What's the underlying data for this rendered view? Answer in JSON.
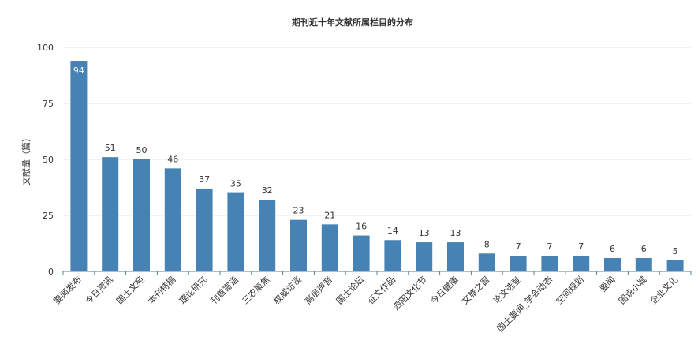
{
  "chart_data": {
    "type": "bar",
    "title": "期刊近十年文献所属栏目的分布",
    "xlabel": "",
    "ylabel": "文献量（篇）",
    "ylim": [
      0,
      100
    ],
    "yticks": [
      0,
      25,
      50,
      75,
      100
    ],
    "grid": true,
    "legend": "none",
    "colors": {
      "bar": "#4682b4",
      "axis": "#4682b4",
      "grid": "#e6e6e6"
    },
    "categories": [
      "要闻发布",
      "今日资讯",
      "国土文苑",
      "本刊特稿",
      "理论研究",
      "刊首寄语",
      "三农聚焦",
      "权威访谈",
      "高层声音",
      "国土论坛",
      "征文作品",
      "泗阳文化节",
      "今日健康",
      "文旅之窗",
      "论文选登",
      "国土要闻_学会动态",
      "空间规划",
      "要闻",
      "图说小城",
      "企业文化"
    ],
    "values": [
      94,
      51,
      50,
      46,
      37,
      35,
      32,
      23,
      21,
      16,
      14,
      13,
      13,
      8,
      7,
      7,
      7,
      6,
      6,
      5
    ]
  }
}
